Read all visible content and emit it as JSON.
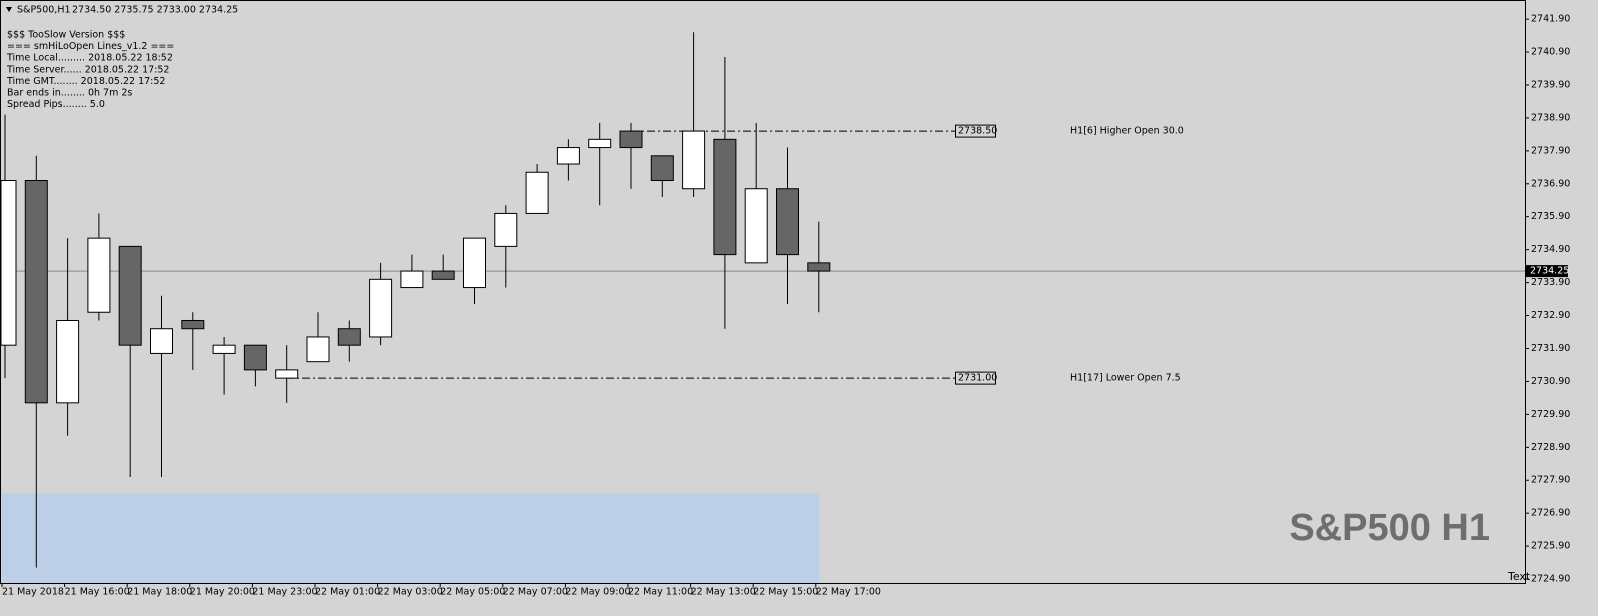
{
  "chart_data": {
    "type": "candlestick",
    "header": {
      "symbol": "S&P500,H1",
      "ohlc": "2734.50 2735.75 2733.00 2734.25"
    },
    "info": [
      "$$$ TooSlow Version $$$",
      "=== smHiLoOpen Lines_v1.2 ===",
      "Time Local......... 2018.05.22 18:52",
      "Time Server...... 2018.05.22 17:52",
      "Time GMT........ 2018.05.22 17:52",
      "Bar ends in........ 0h 7m 2s",
      "Spread Pips........ 5.0"
    ],
    "categories": [
      "21 May 2018",
      null,
      "21 May 16:00",
      null,
      "21 May 18:00",
      null,
      "21 May 20:00",
      null,
      "21 May 23:00",
      null,
      "22 May 01:00",
      null,
      "22 May 03:00",
      null,
      "22 May 05:00",
      null,
      "22 May 07:00",
      null,
      "22 May 09:00",
      null,
      "22 May 11:00",
      null,
      "22 May 13:00",
      null,
      "22 May 15:00",
      null,
      "22 May 17:00"
    ],
    "open": [
      2732.0,
      2737.0,
      2730.25,
      2733.0,
      2735.0,
      2731.75,
      2732.75,
      2731.75,
      2732.0,
      2731.0,
      2731.5,
      2732.5,
      2732.25,
      2733.75,
      2734.25,
      2733.75,
      2735.0,
      2736.0,
      2737.5,
      2738.0,
      2738.5,
      2737.75,
      2736.75,
      2738.25,
      2734.5,
      2736.75,
      2734.5
    ],
    "high": [
      2739.0,
      2737.75,
      2735.25,
      2736.0,
      2735.0,
      2733.5,
      2733.0,
      2732.25,
      2732.0,
      2732.0,
      2733.0,
      2732.75,
      2734.5,
      2734.75,
      2734.75,
      2735.25,
      2736.25,
      2737.5,
      2738.25,
      2738.75,
      2738.75,
      2737.75,
      2741.5,
      2740.75,
      2738.75,
      2738.0,
      2735.75
    ],
    "low": [
      2731.0,
      2725.25,
      2729.25,
      2732.75,
      2728.0,
      2728.0,
      2731.25,
      2730.5,
      2730.75,
      2730.25,
      2731.5,
      2731.5,
      2732.0,
      2733.75,
      2734.0,
      2733.25,
      2733.75,
      2736.0,
      2737.0,
      2736.25,
      2736.75,
      2736.5,
      2736.5,
      2732.5,
      2734.5,
      2733.25,
      2733.0
    ],
    "close": [
      2737.0,
      2730.25,
      2732.75,
      2735.25,
      2732.0,
      2732.5,
      2732.5,
      2732.0,
      2731.25,
      2731.25,
      2732.25,
      2732.0,
      2734.0,
      2734.25,
      2734.0,
      2735.25,
      2736.0,
      2737.25,
      2738.0,
      2738.25,
      2738.0,
      2737.0,
      2738.5,
      2734.75,
      2736.75,
      2734.75,
      2734.25
    ],
    "up_color": "#ffffff",
    "down_color": "#666666",
    "ylim": [
      2724.78,
      2742.48
    ],
    "yticks": [
      {
        "value": 2741.9,
        "label": "2741.90"
      },
      {
        "value": 2740.9,
        "label": "2740.90"
      },
      {
        "value": 2739.9,
        "label": "2739.90"
      },
      {
        "value": 2738.9,
        "label": "2738.90"
      },
      {
        "value": 2737.9,
        "label": "2737.90"
      },
      {
        "value": 2736.9,
        "label": "2736.90"
      },
      {
        "value": 2735.9,
        "label": "2735.90"
      },
      {
        "value": 2734.9,
        "label": "2734.90"
      },
      {
        "value": 2733.9,
        "label": "2733.90"
      },
      {
        "value": 2732.9,
        "label": "2732.90"
      },
      {
        "value": 2731.9,
        "label": "2731.90"
      },
      {
        "value": 2730.9,
        "label": "2730.90"
      },
      {
        "value": 2729.9,
        "label": "2729.90"
      },
      {
        "value": 2728.9,
        "label": "2728.90"
      },
      {
        "value": 2727.9,
        "label": "2727.90"
      },
      {
        "value": 2726.9,
        "label": "2726.90"
      },
      {
        "value": 2725.9,
        "label": "2725.90"
      },
      {
        "value": 2724.9,
        "label": "2724.90"
      }
    ],
    "levels": [
      {
        "value": 2738.5,
        "label": "2738.50",
        "text": "H1[6] Higher Open 30.0"
      },
      {
        "value": 2731.0,
        "label": "2731.00",
        "text": "H1[17] Lower Open 7.5"
      }
    ],
    "current": {
      "value": 2734.25,
      "label": "2734.25"
    },
    "watermark": "S&P500 H1",
    "corner_text": "Text"
  }
}
